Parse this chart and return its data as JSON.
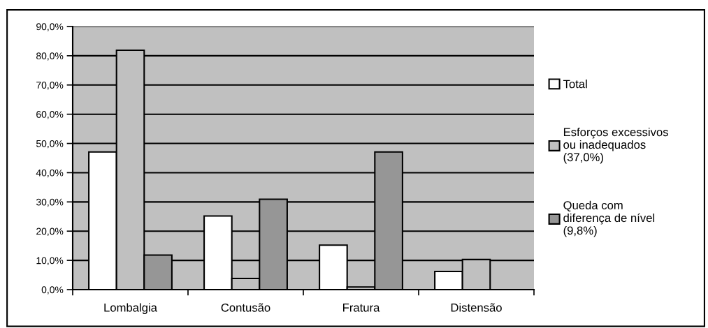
{
  "chart_data": {
    "type": "bar",
    "categories": [
      "Lombalgia",
      "Contusão",
      "Fratura",
      "Distensão"
    ],
    "series": [
      {
        "name": "Total",
        "color": "#ffffff",
        "values": [
          47.1,
          25.2,
          15.2,
          6.2
        ]
      },
      {
        "name": "Esforços excessivos\nou inadequados\n(37,0%)",
        "color": "#c0c0c0",
        "values": [
          81.9,
          3.8,
          0.9,
          10.3
        ]
      },
      {
        "name": "Queda com\ndiferença de nível\n(9,8%)",
        "color": "#969696",
        "values": [
          11.8,
          30.9,
          47.1,
          null
        ]
      }
    ],
    "ylim": [
      0,
      90
    ],
    "yticks": [
      {
        "value": 0,
        "label": "0,0%"
      },
      {
        "value": 10,
        "label": "10,0%"
      },
      {
        "value": 20,
        "label": "20,0%"
      },
      {
        "value": 30,
        "label": "30,0%"
      },
      {
        "value": 40,
        "label": "40,0%"
      },
      {
        "value": 50,
        "label": "50,0%"
      },
      {
        "value": 60,
        "label": "60,0%"
      },
      {
        "value": 70,
        "label": "70,0%"
      },
      {
        "value": 80,
        "label": "80,0%"
      },
      {
        "value": 90,
        "label": "90,0%"
      }
    ],
    "grid": "y",
    "legend": "right"
  }
}
